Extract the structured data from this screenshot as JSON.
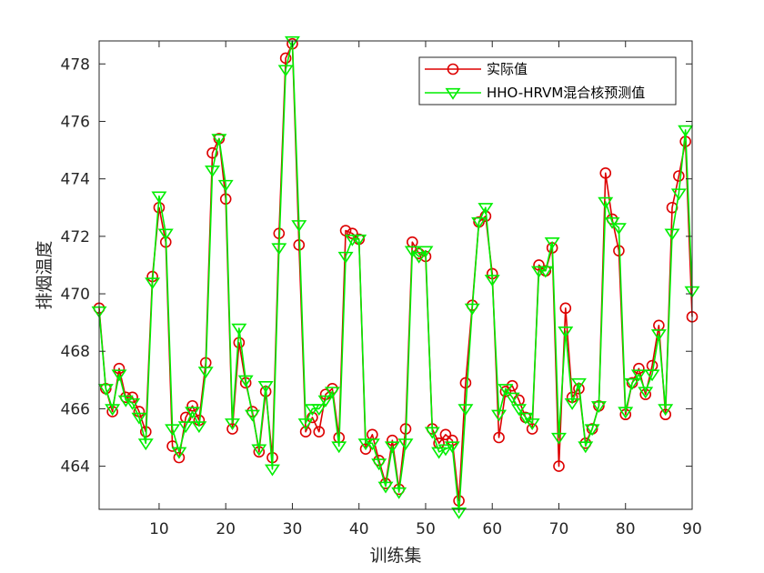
{
  "chart_data": {
    "type": "line",
    "xlabel": "训练集",
    "ylabel": "排烟温度",
    "xlim": [
      1,
      90
    ],
    "ylim": [
      462.5,
      478.8
    ],
    "xticks": [
      10,
      20,
      30,
      40,
      50,
      60,
      70,
      80,
      90
    ],
    "yticks": [
      464,
      466,
      468,
      470,
      472,
      474,
      476,
      478
    ],
    "grid": false,
    "legend_position": "top-right",
    "x": [
      1,
      2,
      3,
      4,
      5,
      6,
      7,
      8,
      9,
      10,
      11,
      12,
      13,
      14,
      15,
      16,
      17,
      18,
      19,
      20,
      21,
      22,
      23,
      24,
      25,
      26,
      27,
      28,
      29,
      30,
      31,
      32,
      33,
      34,
      35,
      36,
      37,
      38,
      39,
      40,
      41,
      42,
      43,
      44,
      45,
      46,
      47,
      48,
      49,
      50,
      51,
      52,
      53,
      54,
      55,
      56,
      57,
      58,
      59,
      60,
      61,
      62,
      63,
      64,
      65,
      66,
      67,
      68,
      69,
      70,
      71,
      72,
      73,
      74,
      75,
      76,
      77,
      78,
      79,
      80,
      81,
      82,
      83,
      84,
      85,
      86,
      87,
      88,
      89,
      90
    ],
    "series": [
      {
        "name": "实际值",
        "color": "#dd0000",
        "marker": "circle",
        "values": [
          469.5,
          466.7,
          465.9,
          467.4,
          466.4,
          466.4,
          465.9,
          465.2,
          470.6,
          473.0,
          471.8,
          464.7,
          464.3,
          465.7,
          466.1,
          465.6,
          467.6,
          474.9,
          475.4,
          473.3,
          465.3,
          468.3,
          466.9,
          465.9,
          464.5,
          466.6,
          464.3,
          472.1,
          478.2,
          478.7,
          471.7,
          465.2,
          465.7,
          465.2,
          466.5,
          466.7,
          465.0,
          472.2,
          472.1,
          471.9,
          464.6,
          465.1,
          464.2,
          463.4,
          464.9,
          463.2,
          465.3,
          471.8,
          471.4,
          471.3,
          465.3,
          464.8,
          465.1,
          464.9,
          462.8,
          466.9,
          469.6,
          472.5,
          472.7,
          470.7,
          465.0,
          466.6,
          466.8,
          466.3,
          465.7,
          465.3,
          471.0,
          470.8,
          471.6,
          464.0,
          469.5,
          466.4,
          466.7,
          464.8,
          465.3,
          466.1,
          474.2,
          472.6,
          471.5,
          465.8,
          466.9,
          467.4,
          466.5,
          467.5,
          468.9,
          465.8,
          473.0,
          474.1,
          475.3,
          469.2
        ]
      },
      {
        "name": "HHO-HRVM混合核预测值",
        "color": "#00ee00",
        "marker": "triangle-down",
        "values": [
          469.4,
          466.7,
          466.0,
          467.2,
          466.3,
          466.2,
          465.7,
          464.8,
          470.4,
          473.4,
          472.1,
          465.3,
          464.5,
          465.4,
          465.9,
          465.4,
          467.3,
          474.3,
          475.4,
          473.8,
          465.5,
          468.8,
          467.0,
          465.8,
          464.6,
          466.8,
          463.9,
          471.6,
          477.8,
          478.8,
          472.4,
          465.5,
          466.0,
          466.0,
          466.3,
          466.6,
          464.7,
          471.3,
          471.9,
          471.9,
          464.8,
          464.8,
          464.1,
          463.3,
          464.7,
          463.1,
          464.8,
          471.5,
          471.3,
          471.5,
          465.2,
          464.5,
          464.6,
          464.7,
          462.4,
          466.0,
          469.5,
          472.5,
          473.0,
          470.5,
          465.8,
          466.7,
          466.4,
          466.0,
          465.7,
          465.5,
          470.8,
          470.8,
          471.8,
          465.0,
          468.7,
          466.2,
          466.9,
          464.7,
          465.3,
          466.1,
          473.2,
          472.5,
          472.3,
          465.9,
          466.9,
          467.2,
          466.6,
          467.2,
          468.6,
          466.0,
          472.1,
          473.5,
          475.7,
          470.1
        ]
      }
    ]
  }
}
